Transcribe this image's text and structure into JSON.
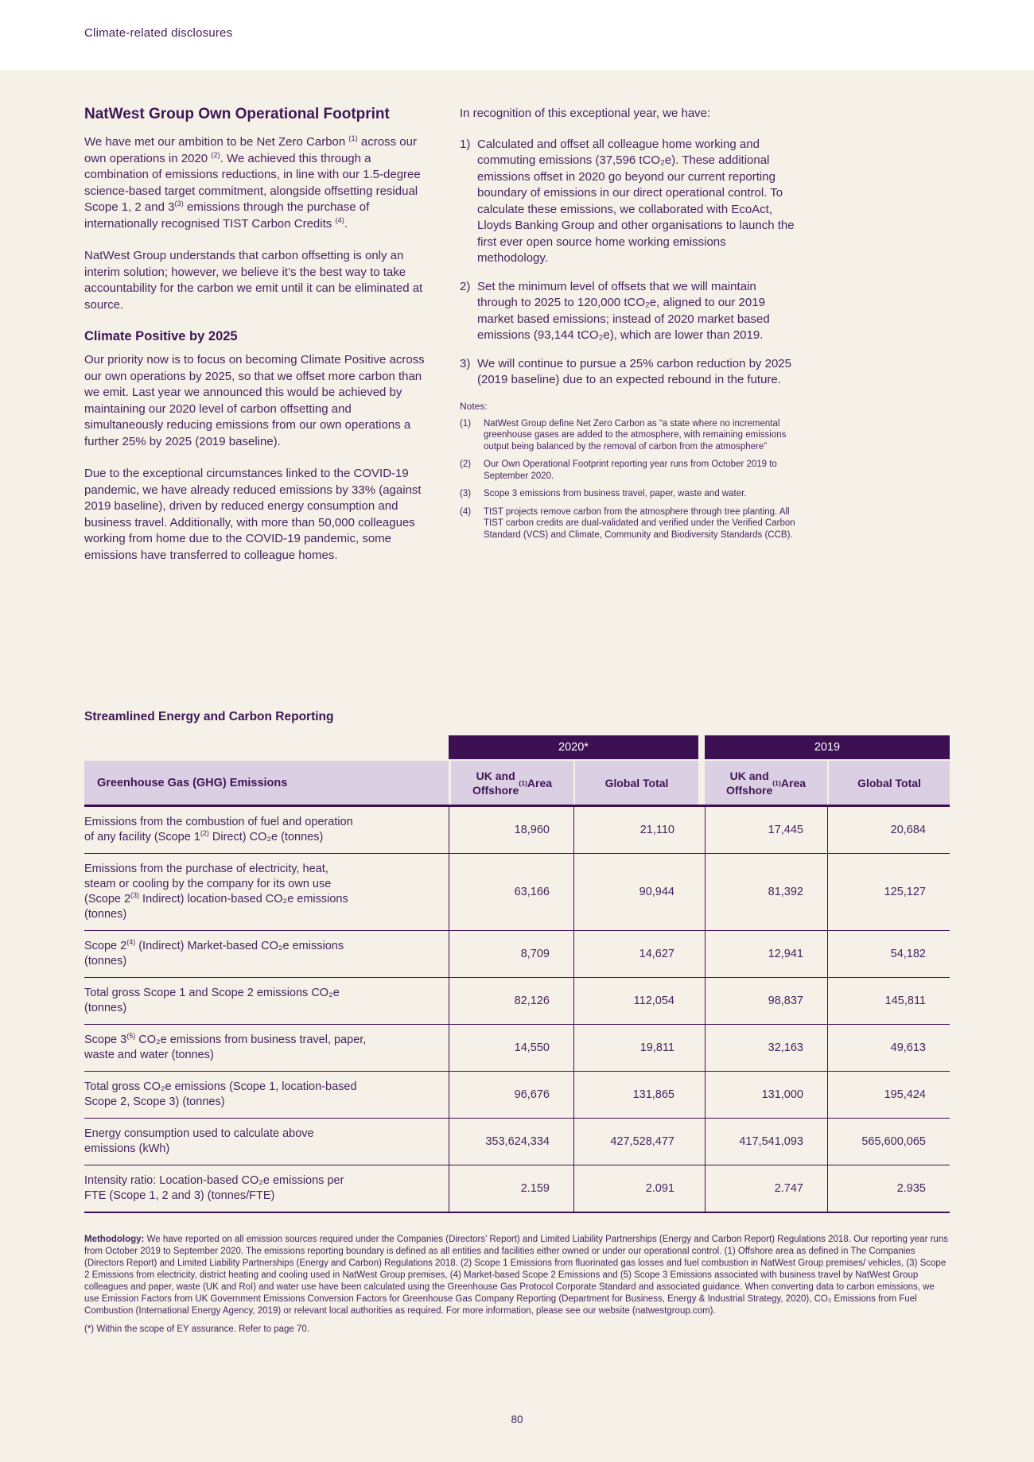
{
  "page": {
    "breadcrumb": "Climate-related disclosures",
    "page_number": "80"
  },
  "colors": {
    "page_background": "#F6F1E8",
    "top_band": "#FFFFFF",
    "text_purple": "#44255F",
    "table_band_purple": "#3C1053",
    "table_subheader_lavender": "#DBCFE3"
  },
  "left_column": {
    "heading": "NatWest Group Own Operational Footprint",
    "para1": "We have met our ambition to be Net Zero Carbon (1) across our own operations in 2020 (2). We achieved this through a combination of emissions reductions, in line with our 1.5-degree science-based target commitment, alongside offsetting residual Scope 1, 2 and 3(3) emissions through the purchase of internationally recognised TIST Carbon Credits (4).",
    "para2": "NatWest Group understands that carbon offsetting is only an interim solution; however, we believe it’s the best way to take accountability for the carbon we emit until it can be eliminated at source.",
    "subheading": "Climate Positive by 2025",
    "para3": "Our priority now is to focus on becoming Climate Positive across our own operations by 2025, so that we offset more carbon than we emit. Last year we announced this would be achieved by maintaining our 2020 level of carbon offsetting and simultaneously reducing emissions from our own operations a further 25% by 2025 (2019 baseline).",
    "para4": "Due to the exceptional circumstances linked to the COVID-19 pandemic, we have already reduced emissions by 33% (against 2019 baseline), driven by reduced energy consumption and business travel. Additionally, with more than 50,000 colleagues working from home due to the COVID-19 pandemic, some emissions have transferred to colleague homes."
  },
  "right_column": {
    "intro": "In recognition of this exceptional year, we have:",
    "numbered_items": [
      {
        "marker": "1)",
        "text": "Calculated and offset all colleague home working and commuting emissions (37,596 tCO₂e). These additional emissions offset in 2020 go beyond our current reporting boundary of emissions in our direct operational control. To calculate these emissions, we collaborated with EcoAct, Lloyds Banking Group and other organisations to launch the first ever open source home working emissions methodology."
      },
      {
        "marker": "2)",
        "text": "Set the minimum level of offsets that we will maintain through to 2025 to 120,000 tCO₂e, aligned to our 2019 market based emissions; instead of 2020 market based emissions (93,144 tCO₂e), which are lower than 2019."
      },
      {
        "marker": "3)",
        "text": "We will continue to pursue a 25% carbon reduction by 2025 (2019 baseline) due to an expected rebound in the future."
      }
    ],
    "notes_label": "Notes:",
    "notes": [
      {
        "marker": "(1)",
        "text": "NatWest Group define Net Zero Carbon as “a state where no incremental greenhouse gases are added to the atmosphere, with remaining emissions output being balanced by the removal of carbon from the atmosphere”"
      },
      {
        "marker": "(2)",
        "text": "Our Own Operational Footprint reporting year runs from October 2019 to September 2020."
      },
      {
        "marker": "(3)",
        "text": "Scope 3 emissions from business travel, paper, waste and water."
      },
      {
        "marker": "(4)",
        "text": "TIST projects remove carbon from the atmosphere through tree planting. All TIST carbon credits are dual-validated and verified under the Verified Carbon Standard (VCS) and Climate, Community and Biodiversity Standards (CCB)."
      }
    ]
  },
  "table_section": {
    "heading": "Streamlined Energy and Carbon Reporting"
  },
  "chart_data": {
    "type": "table",
    "title": "Streamlined Energy and Carbon Reporting",
    "year_groups": [
      "2020*",
      "2019"
    ],
    "row_header": "Greenhouse Gas (GHG) Emissions",
    "columns": [
      "UK and\nOffshore (1) Area",
      "Global Total",
      "UK and\nOffshore (1) Area",
      "Global Total"
    ],
    "rows": [
      {
        "label": "Emissions from the combustion of fuel and operation\nof any facility (Scope 1(2) Direct) CO₂e (tonnes)",
        "values": [
          "18,960",
          "21,110",
          "17,445",
          "20,684"
        ]
      },
      {
        "label": "Emissions from the purchase of electricity, heat,\nsteam or cooling by the company for its own use\n(Scope 2(3) Indirect) location-based CO₂e emissions\n(tonnes)",
        "values": [
          "63,166",
          "90,944",
          "81,392",
          "125,127"
        ]
      },
      {
        "label": "Scope 2(4) (Indirect) Market-based CO₂e emissions\n(tonnes)",
        "values": [
          "8,709",
          "14,627",
          "12,941",
          "54,182"
        ]
      },
      {
        "label": "Total gross Scope 1 and Scope 2 emissions CO₂e\n(tonnes)",
        "values": [
          "82,126",
          "112,054",
          "98,837",
          "145,811"
        ]
      },
      {
        "label": "Scope 3(5) CO₂e emissions from business travel, paper,\nwaste and water (tonnes)",
        "values": [
          "14,550",
          "19,811",
          "32,163",
          "49,613"
        ]
      },
      {
        "label": "Total gross CO₂e emissions (Scope 1, location-based\nScope 2, Scope 3) (tonnes)",
        "values": [
          "96,676",
          "131,865",
          "131,000",
          "195,424"
        ]
      },
      {
        "label": "Energy consumption used to calculate above\nemissions (kWh)",
        "values": [
          "353,624,334",
          "427,528,477",
          "417,541,093",
          "565,600,065"
        ]
      },
      {
        "label": "Intensity ratio: Location-based CO₂e emissions per\nFTE (Scope 1, 2 and 3) (tonnes/FTE)",
        "values": [
          "2.159",
          "2.091",
          "2.747",
          "2.935"
        ]
      }
    ]
  },
  "methodology": {
    "label": "Methodology:",
    "text": "We have reported on all emission sources required under the Companies (Directors’ Report) and Limited Liability Partnerships (Energy and Carbon Report) Regulations 2018.  Our reporting year runs from October 2019 to September 2020. The emissions reporting boundary is defined as all entities and facilities either owned or under our operational control. (1) Offshore area as defined in The Companies (Directors Report) and Limited Liability Partnerships (Energy and Carbon) Regulations 2018.  (2) Scope 1 Emissions from fluorinated gas losses and fuel combustion in NatWest Group premises/ vehicles, (3) Scope 2 Emissions from electricity, district heating and cooling used in NatWest Group premises, (4) Market-based Scope 2 Emissions and (5) Scope 3 Emissions associated with business travel by NatWest Group colleagues and paper, waste (UK and RoI) and water use have been calculated using the Greenhouse Gas Protocol Corporate Standard and associated guidance. When converting data to carbon emissions, we use Emission Factors from UK Government Emissions Conversion Factors for Greenhouse Gas Company Reporting (Department for Business, Energy & Industrial Strategy, 2020), CO₂ Emissions from Fuel Combustion (International Energy Agency, 2019) or relevant local authorities as required. For more information, please see our website (natwestgroup.com).",
    "assurance_note": "(*) Within the scope of EY assurance. Refer to page 70."
  }
}
